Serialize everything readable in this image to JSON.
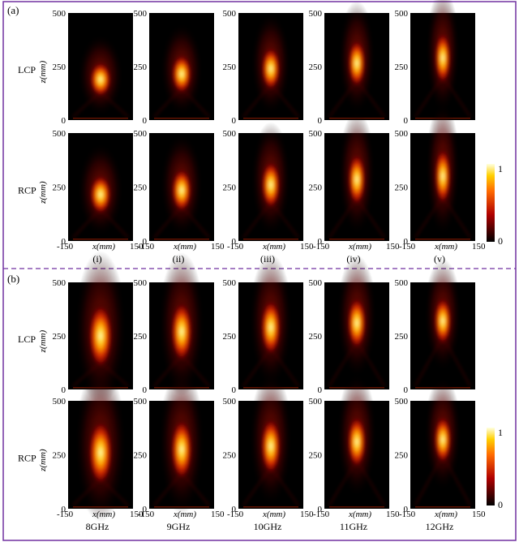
{
  "panels": [
    {
      "label": "(a)",
      "rows": [
        "LCP",
        "RCP"
      ],
      "columns": [
        "(i)",
        "(ii)",
        "(iii)",
        "(iv)",
        "(v)"
      ],
      "focus": [
        {
          "z": [
            190,
            215,
            240,
            265,
            290
          ],
          "len": [
            0.16,
            0.18,
            0.2,
            0.22,
            0.24
          ],
          "width": [
            0.16,
            0.15,
            0.14,
            0.13,
            0.12
          ]
        },
        {
          "z": [
            215,
            235,
            260,
            285,
            300
          ],
          "len": [
            0.18,
            0.2,
            0.22,
            0.24,
            0.26
          ],
          "width": [
            0.16,
            0.15,
            0.14,
            0.13,
            0.12
          ]
        }
      ],
      "has_colorbar": true
    },
    {
      "label": "(b)",
      "rows": [
        "LCP",
        "RCP"
      ],
      "columns": [
        "8GHz",
        "9GHz",
        "10GHz",
        "11GHz",
        "12GHz"
      ],
      "focus": [
        {
          "z": [
            250,
            270,
            290,
            310,
            320
          ],
          "len": [
            0.3,
            0.28,
            0.26,
            0.24,
            0.22
          ],
          "width": [
            0.18,
            0.16,
            0.15,
            0.14,
            0.13
          ]
        },
        {
          "z": [
            260,
            275,
            290,
            310,
            320
          ],
          "len": [
            0.3,
            0.28,
            0.26,
            0.24,
            0.22
          ],
          "width": [
            0.18,
            0.16,
            0.15,
            0.14,
            0.13
          ]
        }
      ],
      "has_colorbar": true
    }
  ],
  "axes": {
    "x_label": "x(mm)",
    "x_ticks": [
      "-150",
      "150"
    ],
    "z_label": "z(mm)",
    "z_ticks": [
      "0",
      "250",
      "500"
    ],
    "xlim": [
      -150,
      150
    ],
    "zlim": [
      0,
      500
    ]
  },
  "colorbar": {
    "max_label": "1",
    "min_label": "0",
    "range": [
      0,
      1
    ],
    "colormap": "hot"
  },
  "colors": {
    "frame": "#7030a0",
    "divider": "#7030a0",
    "map_background": "#000000"
  }
}
